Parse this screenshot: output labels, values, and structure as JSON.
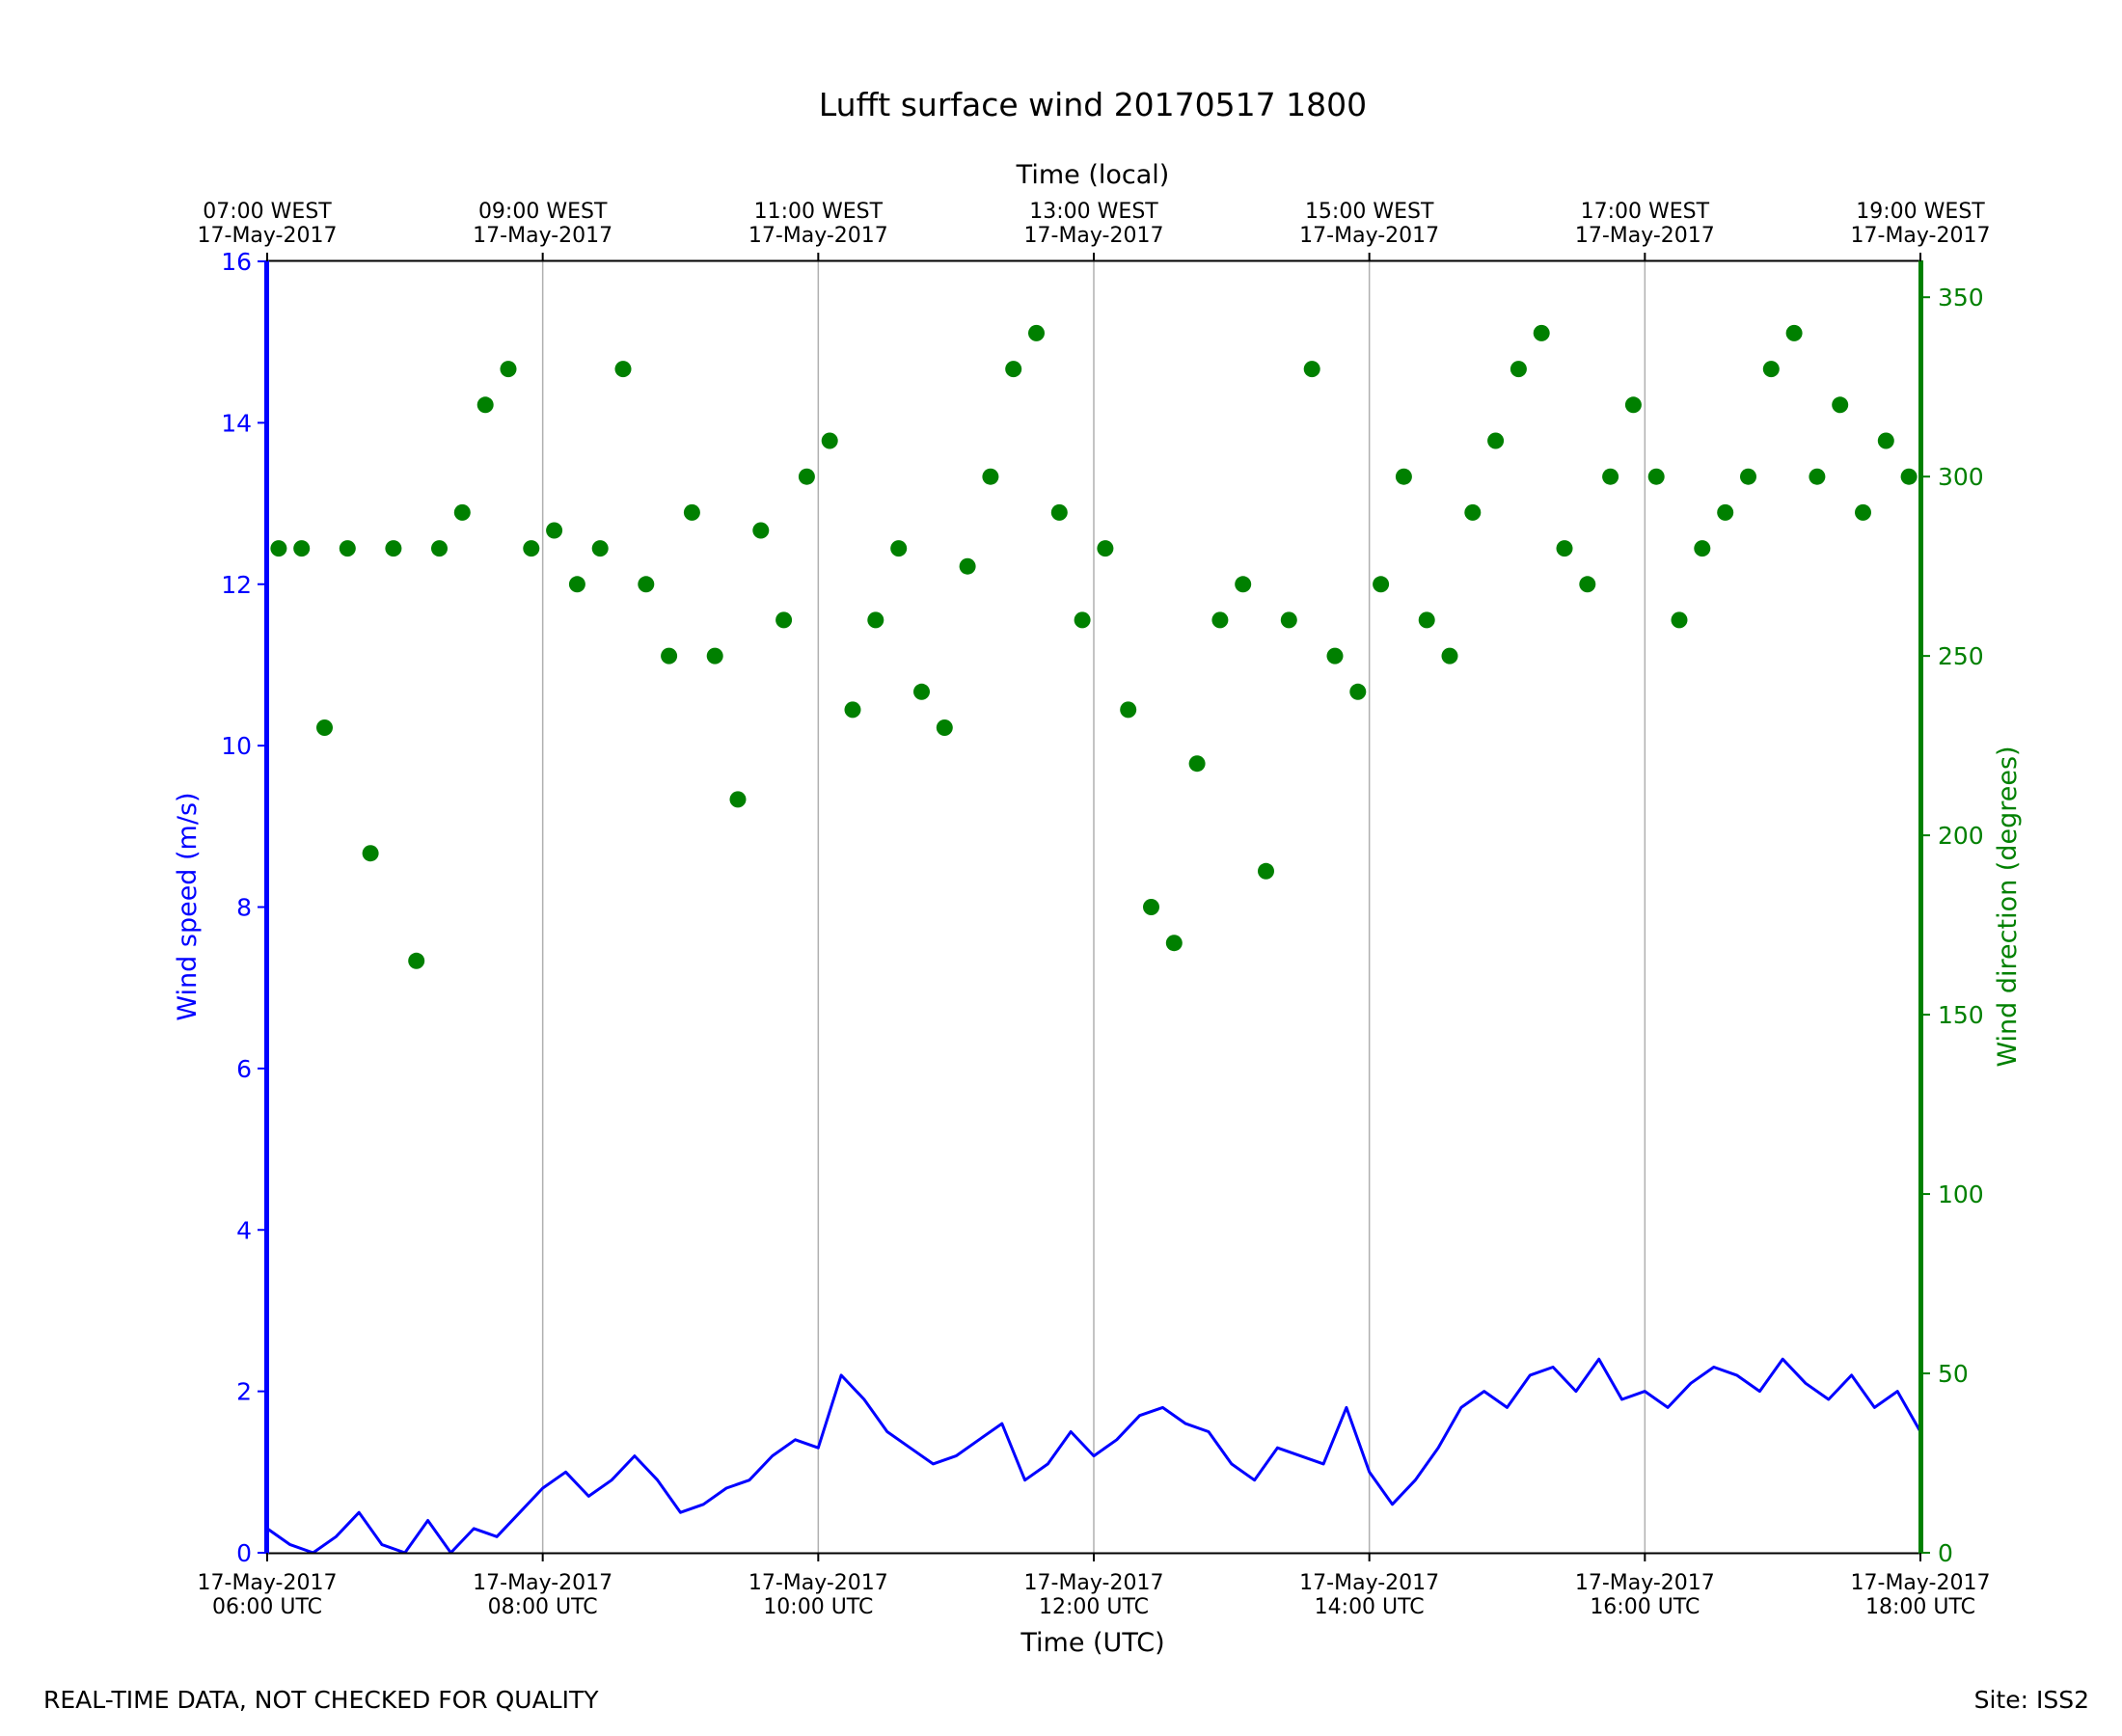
{
  "chart_data": {
    "type": "line+scatter",
    "title": "Lufft surface wind 20170517 1800",
    "xlabel": "Time (UTC)",
    "xlabel_top": "Time (local)",
    "ylabel_left": "Wind speed (m/s)",
    "ylabel_right": "Wind direction (degrees)",
    "xlim": [
      "2017-05-17 06:00",
      "2017-05-17 18:00"
    ],
    "ylim_left": [
      0,
      16
    ],
    "ylim_right": [
      0,
      360
    ],
    "left_ticks": [
      "0",
      "2",
      "4",
      "6",
      "8",
      "10",
      "12",
      "14",
      "16"
    ],
    "right_ticks": [
      "0",
      "50",
      "100",
      "150",
      "200",
      "250",
      "300",
      "350"
    ],
    "bottom_ticks": [
      {
        "date": "17-May-2017",
        "time": "06:00 UTC"
      },
      {
        "date": "17-May-2017",
        "time": "08:00 UTC"
      },
      {
        "date": "17-May-2017",
        "time": "10:00 UTC"
      },
      {
        "date": "17-May-2017",
        "time": "12:00 UTC"
      },
      {
        "date": "17-May-2017",
        "time": "14:00 UTC"
      },
      {
        "date": "17-May-2017",
        "time": "16:00 UTC"
      },
      {
        "date": "17-May-2017",
        "time": "18:00 UTC"
      }
    ],
    "top_ticks": [
      {
        "time": "07:00 WEST",
        "date": "17-May-2017"
      },
      {
        "time": "09:00 WEST",
        "date": "17-May-2017"
      },
      {
        "time": "11:00 WEST",
        "date": "17-May-2017"
      },
      {
        "time": "13:00 WEST",
        "date": "17-May-2017"
      },
      {
        "time": "15:00 WEST",
        "date": "17-May-2017"
      },
      {
        "time": "17:00 WEST",
        "date": "17-May-2017"
      },
      {
        "time": "19:00 WEST",
        "date": "17-May-2017"
      }
    ],
    "grid": "vertical at major ticks",
    "colors": {
      "speed": "#0000ff",
      "direction": "#008000",
      "grid": "#b0b0b0"
    },
    "series": [
      {
        "axis": "left",
        "style": "line",
        "x": [
          "06:00",
          "06:10",
          "06:20",
          "06:30",
          "06:40",
          "06:50",
          "07:00",
          "07:10",
          "07:20",
          "07:30",
          "07:40",
          "07:50",
          "08:00",
          "08:10",
          "08:20",
          "08:30",
          "08:40",
          "08:50",
          "09:00",
          "09:10",
          "09:20",
          "09:30",
          "09:40",
          "09:50",
          "10:00",
          "10:10",
          "10:20",
          "10:30",
          "10:40",
          "10:50",
          "11:00",
          "11:10",
          "11:20",
          "11:30",
          "11:40",
          "11:50",
          "12:00",
          "12:10",
          "12:20",
          "12:30",
          "12:40",
          "12:50",
          "13:00",
          "13:10",
          "13:20",
          "13:30",
          "13:40",
          "13:50",
          "14:00",
          "14:10",
          "14:20",
          "14:30",
          "14:40",
          "14:50",
          "15:00",
          "15:10",
          "15:20",
          "15:30",
          "15:40",
          "15:50",
          "16:00",
          "16:10",
          "16:20",
          "16:30",
          "16:40",
          "16:50",
          "17:00",
          "17:10",
          "17:20",
          "17:30",
          "17:40",
          "17:50",
          "18:00"
        ],
        "values": [
          0.3,
          0.1,
          0,
          0.2,
          0.5,
          0.1,
          0,
          0.4,
          0,
          0.3,
          0.2,
          0.5,
          0.8,
          1.0,
          0.7,
          0.9,
          1.2,
          0.9,
          0.5,
          0.6,
          0.8,
          0.9,
          1.2,
          1.4,
          1.3,
          2.2,
          1.9,
          1.5,
          1.3,
          1.1,
          1.2,
          1.4,
          1.6,
          0.9,
          1.1,
          1.5,
          1.2,
          1.4,
          1.7,
          1.8,
          1.6,
          1.5,
          1.1,
          0.9,
          1.3,
          1.2,
          1.1,
          1.8,
          1.0,
          0.6,
          0.9,
          1.3,
          1.8,
          2.0,
          1.8,
          2.2,
          2.3,
          2.0,
          2.4,
          1.9,
          2.0,
          1.8,
          2.1,
          2.3,
          2.2,
          2.0,
          2.4,
          2.1,
          1.9,
          2.2,
          1.8,
          2.0,
          1.5
        ]
      },
      {
        "axis": "right",
        "style": "scatter",
        "x": [
          "06:05",
          "06:15",
          "06:25",
          "06:35",
          "06:45",
          "06:55",
          "07:05",
          "07:15",
          "07:25",
          "07:35",
          "07:45",
          "07:55",
          "08:05",
          "08:15",
          "08:25",
          "08:35",
          "08:45",
          "08:55",
          "09:05",
          "09:15",
          "09:25",
          "09:35",
          "09:45",
          "09:55",
          "10:05",
          "10:15",
          "10:25",
          "10:35",
          "10:45",
          "10:55",
          "11:05",
          "11:15",
          "11:25",
          "11:35",
          "11:45",
          "11:55",
          "12:05",
          "12:15",
          "12:25",
          "12:35",
          "12:45",
          "12:55",
          "13:05",
          "13:15",
          "13:25",
          "13:35",
          "13:45",
          "13:55",
          "14:05",
          "14:15",
          "14:25",
          "14:35",
          "14:45",
          "14:55",
          "15:05",
          "15:15",
          "15:25",
          "15:35",
          "15:45",
          "15:55",
          "16:05",
          "16:15",
          "16:25",
          "16:35",
          "16:45",
          "16:55",
          "17:05",
          "17:15",
          "17:25",
          "17:35",
          "17:45",
          "17:55"
        ],
        "values": [
          280,
          280,
          230,
          280,
          195,
          280,
          165,
          280,
          290,
          320,
          330,
          280,
          285,
          270,
          280,
          330,
          270,
          250,
          290,
          250,
          210,
          285,
          260,
          300,
          310,
          235,
          260,
          280,
          240,
          230,
          275,
          300,
          330,
          340,
          290,
          260,
          280,
          235,
          180,
          170,
          220,
          260,
          270,
          190,
          260,
          330,
          250,
          240,
          270,
          300,
          260,
          250,
          290,
          310,
          330,
          340,
          280,
          270,
          300,
          320,
          300,
          260,
          280,
          290,
          300,
          330,
          340,
          300,
          320,
          290,
          310,
          300
        ]
      }
    ]
  },
  "footer": {
    "left_note": "REAL-TIME DATA, NOT CHECKED FOR QUALITY",
    "site": "Site: ISS2"
  }
}
